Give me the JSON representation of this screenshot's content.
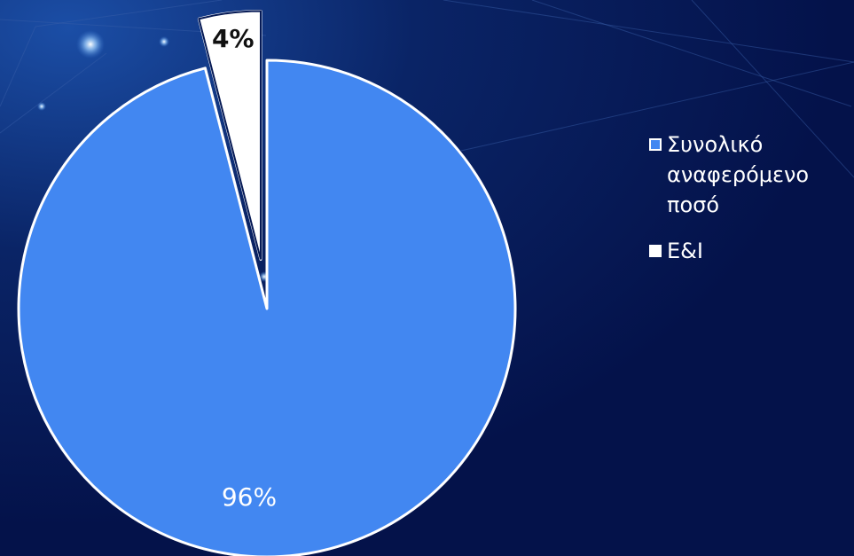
{
  "chart_data": {
    "type": "pie",
    "slices": [
      {
        "label": "Συνολικό αναφερόμενο ποσό",
        "value": 96,
        "data_label": "96%",
        "color": "#4287f1"
      },
      {
        "label": "E&I",
        "value": 4,
        "data_label": "4%",
        "color": "#ffffff",
        "exploded": true
      }
    ],
    "legend_position": "right",
    "background_color": "#061a55"
  }
}
